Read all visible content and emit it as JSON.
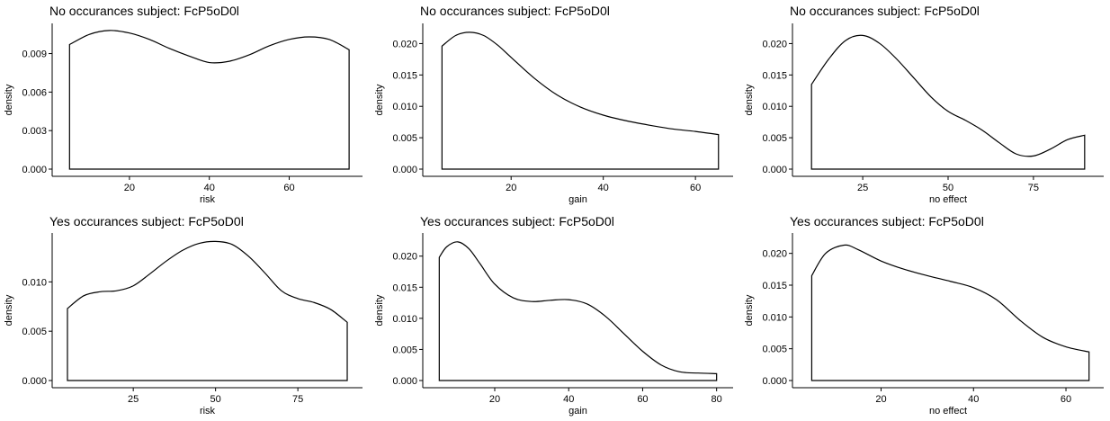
{
  "chart_data": [
    {
      "type": "area",
      "title": "No occurances subject:  FcP5oD0l",
      "xlabel": "risk",
      "ylabel": "density",
      "xlim": [
        2,
        77
      ],
      "ylim": [
        0,
        0.011
      ],
      "xticks": [
        20,
        40,
        60
      ],
      "yticks": [
        0.0,
        0.003,
        0.006,
        0.009
      ],
      "ytick_labels": [
        "0.000",
        "0.003",
        "0.006",
        "0.009"
      ],
      "x": [
        5,
        10,
        15,
        20,
        25,
        30,
        35,
        40,
        45,
        50,
        55,
        60,
        65,
        70,
        75
      ],
      "y": [
        0.0097,
        0.0105,
        0.0108,
        0.0106,
        0.0101,
        0.0094,
        0.0088,
        0.0083,
        0.0084,
        0.0089,
        0.0096,
        0.0101,
        0.0103,
        0.0101,
        0.0093
      ]
    },
    {
      "type": "area",
      "title": "No occurances subject:  FcP5oD0l",
      "xlabel": "gain",
      "ylabel": "density",
      "xlim": [
        2,
        67
      ],
      "ylim": [
        0,
        0.0225
      ],
      "xticks": [
        20,
        40,
        60
      ],
      "yticks": [
        0.0,
        0.005,
        0.01,
        0.015,
        0.02
      ],
      "ytick_labels": [
        "0.000",
        "0.005",
        "0.010",
        "0.015",
        "0.020"
      ],
      "x": [
        5,
        8,
        11,
        14,
        17,
        20,
        25,
        30,
        35,
        40,
        45,
        50,
        55,
        60,
        65
      ],
      "y": [
        0.0196,
        0.0213,
        0.0218,
        0.0213,
        0.0198,
        0.0178,
        0.0145,
        0.0118,
        0.0099,
        0.0086,
        0.0077,
        0.007,
        0.0064,
        0.006,
        0.0055
      ]
    },
    {
      "type": "area",
      "title": "No occurances subject:  FcP5oD0l",
      "xlabel": "no effect",
      "ylabel": "density",
      "xlim": [
        6,
        94
      ],
      "ylim": [
        0,
        0.0225
      ],
      "xticks": [
        25,
        50,
        75
      ],
      "yticks": [
        0.0,
        0.005,
        0.01,
        0.015,
        0.02
      ],
      "ytick_labels": [
        "0.000",
        "0.005",
        "0.010",
        "0.015",
        "0.020"
      ],
      "x": [
        10,
        15,
        20,
        25,
        30,
        35,
        40,
        45,
        50,
        55,
        60,
        65,
        70,
        75,
        80,
        85,
        90
      ],
      "y": [
        0.0135,
        0.0175,
        0.0205,
        0.0213,
        0.02,
        0.0175,
        0.0145,
        0.0115,
        0.0092,
        0.0078,
        0.0062,
        0.0042,
        0.0024,
        0.0021,
        0.0032,
        0.0047,
        0.0054
      ]
    },
    {
      "type": "area",
      "title": "Yes occurances subject:  FcP5oD0l",
      "xlabel": "risk",
      "ylabel": "density",
      "xlim": [
        2,
        93
      ],
      "ylim": [
        0,
        0.0145
      ],
      "xticks": [
        25,
        50,
        75
      ],
      "yticks": [
        0.0,
        0.005,
        0.01
      ],
      "ytick_labels": [
        "0.000",
        "0.005",
        "0.010"
      ],
      "x": [
        5,
        10,
        15,
        20,
        25,
        30,
        35,
        40,
        45,
        50,
        55,
        60,
        65,
        70,
        75,
        80,
        85,
        90
      ],
      "y": [
        0.0073,
        0.0086,
        0.009,
        0.0091,
        0.0096,
        0.0108,
        0.0121,
        0.0132,
        0.0139,
        0.0141,
        0.0138,
        0.0126,
        0.0109,
        0.0091,
        0.0083,
        0.0079,
        0.0072,
        0.0059
      ]
    },
    {
      "type": "area",
      "title": "Yes occurances subject:  FcP5oD0l",
      "xlabel": "gain",
      "ylabel": "density",
      "xlim": [
        2,
        83
      ],
      "ylim": [
        0,
        0.023
      ],
      "xticks": [
        20,
        40,
        60,
        80
      ],
      "yticks": [
        0.0,
        0.005,
        0.01,
        0.015,
        0.02
      ],
      "ytick_labels": [
        "0.000",
        "0.005",
        "0.010",
        "0.015",
        "0.020"
      ],
      "x": [
        5,
        7,
        10,
        13,
        16,
        20,
        25,
        30,
        35,
        40,
        45,
        50,
        55,
        60,
        65,
        70,
        75,
        80
      ],
      "y": [
        0.0198,
        0.0215,
        0.0223,
        0.0212,
        0.0188,
        0.0155,
        0.0133,
        0.0127,
        0.0129,
        0.013,
        0.0123,
        0.0103,
        0.0075,
        0.0047,
        0.0025,
        0.0014,
        0.0012,
        0.0011
      ]
    },
    {
      "type": "area",
      "title": "Yes occurances subject:  FcP5oD0l",
      "xlabel": "no effect",
      "ylabel": "density",
      "xlim": [
        2,
        67
      ],
      "ylim": [
        0,
        0.0225
      ],
      "xticks": [
        20,
        40,
        60
      ],
      "yticks": [
        0.0,
        0.005,
        0.01,
        0.015,
        0.02
      ],
      "ytick_labels": [
        "0.000",
        "0.005",
        "0.010",
        "0.015",
        "0.020"
      ],
      "x": [
        5,
        8,
        12,
        15,
        20,
        25,
        30,
        35,
        40,
        45,
        50,
        55,
        60,
        65
      ],
      "y": [
        0.0165,
        0.02,
        0.0213,
        0.0206,
        0.0188,
        0.0175,
        0.0165,
        0.0156,
        0.0146,
        0.0127,
        0.0095,
        0.0068,
        0.0053,
        0.0045
      ]
    }
  ]
}
